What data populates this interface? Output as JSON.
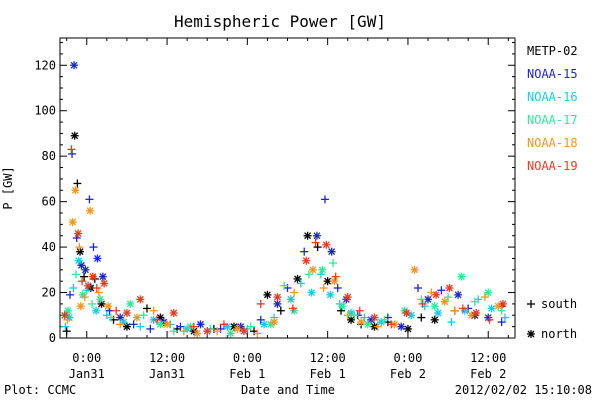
{
  "chart_data": {
    "type": "scatter",
    "title": "Hemispheric Power [GW]",
    "ylabel": "P [GW]",
    "xlabel": "Date and Time",
    "ylim": [
      0,
      132
    ],
    "y_ticks": [
      0,
      20,
      40,
      60,
      80,
      100,
      120
    ],
    "x_range_hours": [
      -4,
      64
    ],
    "x_ticks": [
      {
        "hour": 0,
        "line1": "0:00",
        "line2": "Jan31"
      },
      {
        "hour": 12,
        "line1": "12:00",
        "line2": "Jan31"
      },
      {
        "hour": 24,
        "line1": "0:00",
        "line2": "Feb 1"
      },
      {
        "hour": 36,
        "line1": "12:00",
        "line2": "Feb 1"
      },
      {
        "hour": 48,
        "line1": "0:00",
        "line2": "Feb 2"
      },
      {
        "hour": 60,
        "line1": "12:00",
        "line2": "Feb 2"
      }
    ],
    "legend": {
      "position": "right",
      "entries": [
        {
          "name": "METP-02",
          "color": "#000000"
        },
        {
          "name": "NOAA-15",
          "color": "#1a28c8"
        },
        {
          "name": "NOAA-16",
          "color": "#1ec8e6"
        },
        {
          "name": "NOAA-17",
          "color": "#32e69b"
        },
        {
          "name": "NOAA-18",
          "color": "#f0961e"
        },
        {
          "name": "NOAA-19",
          "color": "#e63c1e"
        }
      ],
      "markers": [
        {
          "symbol": "+",
          "label": "south"
        },
        {
          "symbol": "*",
          "label": "north"
        }
      ]
    },
    "series": [
      {
        "name": "METP-02",
        "color": "#000000",
        "points": [
          [
            -3.0,
            3,
            "+"
          ],
          [
            -1.8,
            89,
            "*"
          ],
          [
            -1.4,
            68,
            "+"
          ],
          [
            -1.0,
            38,
            "*"
          ],
          [
            -0.4,
            27,
            "+"
          ],
          [
            0.6,
            22,
            "*"
          ],
          [
            1.2,
            26,
            "+"
          ],
          [
            2.2,
            15,
            "*"
          ],
          [
            4.0,
            8,
            "+"
          ],
          [
            6.0,
            5,
            "*"
          ],
          [
            9.0,
            13,
            "+"
          ],
          [
            11.0,
            9,
            "*"
          ],
          [
            13.5,
            4,
            "+"
          ],
          [
            16.0,
            3,
            "*"
          ],
          [
            19.0,
            4,
            "+"
          ],
          [
            22.0,
            5,
            "*"
          ],
          [
            25.0,
            3,
            "+"
          ],
          [
            27.0,
            19,
            "*"
          ],
          [
            29.0,
            12,
            "+"
          ],
          [
            31.5,
            26,
            "*"
          ],
          [
            33.0,
            45,
            "*"
          ],
          [
            34.5,
            40,
            "+"
          ],
          [
            36.0,
            25,
            "*"
          ],
          [
            38.0,
            12,
            "+"
          ],
          [
            39.5,
            8,
            "*"
          ],
          [
            41.0,
            6,
            "+"
          ],
          [
            43.0,
            5,
            "*"
          ],
          [
            45.0,
            7,
            "+"
          ],
          [
            48.0,
            4,
            "*"
          ],
          [
            50.0,
            9,
            "+"
          ],
          [
            52.0,
            8,
            "*"
          ],
          [
            55.0,
            12,
            "+"
          ],
          [
            58.0,
            10,
            "*"
          ],
          [
            62.0,
            14,
            "+"
          ]
        ]
      },
      {
        "name": "NOAA-15",
        "color": "#1a28c8",
        "points": [
          [
            -2.5,
            19,
            "+"
          ],
          [
            -2.2,
            81,
            "+"
          ],
          [
            -1.9,
            120,
            "*"
          ],
          [
            -1.5,
            44,
            "+"
          ],
          [
            -0.8,
            32,
            "*"
          ],
          [
            -0.2,
            30,
            "*"
          ],
          [
            0.4,
            61,
            "+"
          ],
          [
            1.0,
            40,
            "+"
          ],
          [
            1.6,
            35,
            "*"
          ],
          [
            2.4,
            27,
            "*"
          ],
          [
            3.4,
            12,
            "+"
          ],
          [
            5.0,
            9,
            "*"
          ],
          [
            7.0,
            6,
            "+"
          ],
          [
            9.5,
            4,
            "+"
          ],
          [
            11.5,
            7,
            "*"
          ],
          [
            14.0,
            5,
            "+"
          ],
          [
            17.0,
            6,
            "*"
          ],
          [
            20.0,
            4,
            "+"
          ],
          [
            23.0,
            5,
            "*"
          ],
          [
            26.0,
            8,
            "+"
          ],
          [
            28.5,
            15,
            "*"
          ],
          [
            30.0,
            22,
            "+"
          ],
          [
            32.5,
            38,
            "+"
          ],
          [
            34.4,
            45,
            "*"
          ],
          [
            35.6,
            61,
            "+"
          ],
          [
            36.6,
            38,
            "*"
          ],
          [
            37.5,
            22,
            "+"
          ],
          [
            38.8,
            17,
            "*"
          ],
          [
            40.5,
            10,
            "+"
          ],
          [
            42.5,
            8,
            "*"
          ],
          [
            45.0,
            9,
            "+"
          ],
          [
            47.0,
            5,
            "*"
          ],
          [
            49.5,
            22,
            "+"
          ],
          [
            51.0,
            17,
            "*"
          ],
          [
            53.0,
            21,
            "+"
          ],
          [
            55.5,
            19,
            "*"
          ],
          [
            57.0,
            13,
            "+"
          ],
          [
            60.0,
            9,
            "*"
          ],
          [
            62.0,
            7,
            "+"
          ]
        ]
      },
      {
        "name": "NOAA-16",
        "color": "#1ec8e6",
        "points": [
          [
            -3.2,
            5,
            "+"
          ],
          [
            -2.6,
            9,
            "*"
          ],
          [
            -2.0,
            22,
            "+"
          ],
          [
            -1.2,
            34,
            "*"
          ],
          [
            0.0,
            21,
            "+"
          ],
          [
            1.4,
            12,
            "*"
          ],
          [
            3.0,
            10,
            "+"
          ],
          [
            5.5,
            7,
            "*"
          ],
          [
            8.0,
            5,
            "+"
          ],
          [
            10.0,
            8,
            "*"
          ],
          [
            12.5,
            6,
            "+"
          ],
          [
            15.0,
            4,
            "*"
          ],
          [
            18.0,
            3,
            "+"
          ],
          [
            21.0,
            5,
            "*"
          ],
          [
            24.0,
            4,
            "+"
          ],
          [
            26.5,
            6,
            "*"
          ],
          [
            28.0,
            9,
            "+"
          ],
          [
            30.5,
            17,
            "*"
          ],
          [
            32.0,
            24,
            "+"
          ],
          [
            33.6,
            20,
            "*"
          ],
          [
            35.0,
            28,
            "+"
          ],
          [
            36.4,
            19,
            "*"
          ],
          [
            37.8,
            15,
            "+"
          ],
          [
            39.5,
            11,
            "*"
          ],
          [
            41.5,
            9,
            "+"
          ],
          [
            44.0,
            7,
            "*"
          ],
          [
            46.0,
            6,
            "+"
          ],
          [
            48.5,
            10,
            "*"
          ],
          [
            50.5,
            14,
            "+"
          ],
          [
            52.5,
            11,
            "*"
          ],
          [
            54.5,
            7,
            "+"
          ],
          [
            56.5,
            12,
            "*"
          ],
          [
            58.5,
            17,
            "+"
          ],
          [
            60.5,
            13,
            "*"
          ],
          [
            62.5,
            9,
            "+"
          ]
        ]
      },
      {
        "name": "NOAA-17",
        "color": "#32e69b",
        "points": [
          [
            -2.8,
            12,
            "*"
          ],
          [
            -1.6,
            28,
            "+"
          ],
          [
            -0.6,
            19,
            "*"
          ],
          [
            0.8,
            15,
            "+"
          ],
          [
            2.0,
            17,
            "*"
          ],
          [
            3.6,
            9,
            "+"
          ],
          [
            6.5,
            15,
            "*"
          ],
          [
            8.5,
            10,
            "+"
          ],
          [
            11.0,
            6,
            "*"
          ],
          [
            13.0,
            3,
            "+"
          ],
          [
            15.5,
            5,
            "*"
          ],
          [
            18.5,
            4,
            "+"
          ],
          [
            21.5,
            2,
            "*"
          ],
          [
            24.5,
            5,
            "+"
          ],
          [
            27.5,
            6,
            "*"
          ],
          [
            29.5,
            23,
            "+"
          ],
          [
            31.0,
            12,
            "*"
          ],
          [
            33.2,
            28,
            "+"
          ],
          [
            35.2,
            30,
            "*"
          ],
          [
            36.8,
            33,
            "+"
          ],
          [
            38.2,
            14,
            "*"
          ],
          [
            40.0,
            10,
            "+"
          ],
          [
            42.0,
            6,
            "*"
          ],
          [
            44.5,
            8,
            "+"
          ],
          [
            47.5,
            12,
            "*"
          ],
          [
            50.0,
            17,
            "+"
          ],
          [
            52.0,
            14,
            "*"
          ],
          [
            54.0,
            18,
            "+"
          ],
          [
            56.0,
            27,
            "*"
          ],
          [
            58.0,
            16,
            "+"
          ],
          [
            60.0,
            20,
            "*"
          ],
          [
            62.0,
            12,
            "+"
          ]
        ]
      },
      {
        "name": "NOAA-18",
        "color": "#f0961e",
        "points": [
          [
            -2.9,
            8,
            "+"
          ],
          [
            -2.1,
            51,
            "*"
          ],
          [
            -1.7,
            65,
            "*"
          ],
          [
            -1.1,
            40,
            "+"
          ],
          [
            -0.9,
            14,
            "*"
          ],
          [
            -0.3,
            18,
            "+"
          ],
          [
            0.5,
            56,
            "*"
          ],
          [
            1.8,
            20,
            "+"
          ],
          [
            3.2,
            14,
            "*"
          ],
          [
            5.0,
            6,
            "+"
          ],
          [
            7.5,
            9,
            "*"
          ],
          [
            10.0,
            12,
            "+"
          ],
          [
            12.0,
            6,
            "*"
          ],
          [
            14.5,
            3,
            "+"
          ],
          [
            16.5,
            2,
            "*"
          ],
          [
            19.5,
            3,
            "+"
          ],
          [
            22.5,
            4,
            "*"
          ],
          [
            25.5,
            2,
            "+"
          ],
          [
            28.0,
            7,
            "*"
          ],
          [
            31.0,
            20,
            "+"
          ],
          [
            33.8,
            30,
            "*"
          ],
          [
            35.4,
            22,
            "+"
          ],
          [
            37.0,
            25,
            "*"
          ],
          [
            39.0,
            10,
            "+"
          ],
          [
            41.0,
            7,
            "*"
          ],
          [
            43.5,
            5,
            "+"
          ],
          [
            46.0,
            6,
            "*"
          ],
          [
            49.0,
            30,
            "*"
          ],
          [
            51.5,
            20,
            "+"
          ],
          [
            53.5,
            16,
            "*"
          ],
          [
            55.0,
            12,
            "+"
          ],
          [
            57.5,
            10,
            "*"
          ],
          [
            59.5,
            18,
            "+"
          ],
          [
            61.5,
            14,
            "*"
          ]
        ]
      },
      {
        "name": "NOAA-19",
        "color": "#e63c1e",
        "points": [
          [
            -3.3,
            10,
            "*"
          ],
          [
            -2.3,
            83,
            "+"
          ],
          [
            -1.3,
            46,
            "*"
          ],
          [
            -0.7,
            25,
            "+"
          ],
          [
            0.2,
            23,
            "*"
          ],
          [
            0.9,
            27,
            "*"
          ],
          [
            1.5,
            22,
            "+"
          ],
          [
            2.6,
            24,
            "*"
          ],
          [
            4.4,
            12,
            "+"
          ],
          [
            6.0,
            11,
            "*"
          ],
          [
            8.0,
            17,
            "*"
          ],
          [
            10.5,
            8,
            "+"
          ],
          [
            13.0,
            11,
            "*"
          ],
          [
            16.0,
            5,
            "+"
          ],
          [
            18.0,
            3,
            "*"
          ],
          [
            20.5,
            6,
            "+"
          ],
          [
            23.5,
            3,
            "*"
          ],
          [
            26.0,
            15,
            "+"
          ],
          [
            28.5,
            18,
            "*"
          ],
          [
            30.8,
            13,
            "+"
          ],
          [
            32.8,
            34,
            "*"
          ],
          [
            34.2,
            42,
            "+"
          ],
          [
            35.8,
            41,
            "*"
          ],
          [
            37.2,
            27,
            "+"
          ],
          [
            39.0,
            18,
            "*"
          ],
          [
            40.8,
            12,
            "+"
          ],
          [
            43.0,
            9,
            "*"
          ],
          [
            45.5,
            6,
            "+"
          ],
          [
            47.8,
            11,
            "*"
          ],
          [
            50.2,
            15,
            "+"
          ],
          [
            52.2,
            19,
            "*"
          ],
          [
            54.2,
            22,
            "*"
          ],
          [
            56.2,
            13,
            "+"
          ],
          [
            58.2,
            11,
            "*"
          ],
          [
            60.2,
            8,
            "+"
          ],
          [
            62.2,
            15,
            "*"
          ]
        ]
      }
    ]
  },
  "footer": {
    "left": "Plot: CCMC",
    "right": "2012/02/02 15:10:08"
  }
}
